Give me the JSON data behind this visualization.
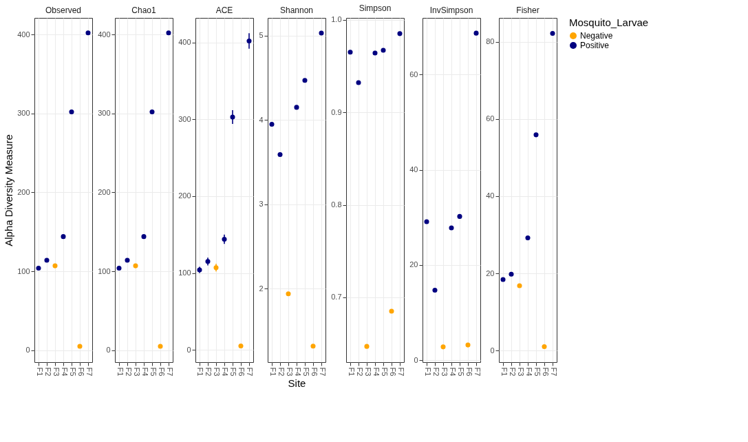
{
  "chart_data": [
    {
      "type": "scatter",
      "title": "Observed",
      "ylabel": "Alpha Diversity Measure",
      "categories": [
        "F1",
        "F2",
        "F3",
        "F4",
        "F5",
        "F6",
        "F7"
      ],
      "ylim": [
        -15,
        421
      ],
      "yticks": [
        0,
        100,
        200,
        300,
        400
      ],
      "grid": true,
      "marker": "circle",
      "series": [
        {
          "color": "#ffa500",
          "values": [
            null,
            null,
            107,
            null,
            null,
            5,
            null
          ]
        },
        {
          "color": "#000080",
          "values": [
            104,
            114,
            null,
            144,
            302,
            null,
            402
          ]
        }
      ]
    },
    {
      "type": "scatter",
      "title": "Chao1",
      "categories": [
        "F1",
        "F2",
        "F3",
        "F4",
        "F5",
        "F6",
        "F7"
      ],
      "ylim": [
        -15,
        421
      ],
      "yticks": [
        0,
        100,
        200,
        300,
        400
      ],
      "grid": true,
      "marker": "circle",
      "series": [
        {
          "color": "#ffa500",
          "values": [
            null,
            null,
            107,
            null,
            null,
            5,
            null
          ]
        },
        {
          "color": "#000080",
          "values": [
            104,
            114,
            null,
            144,
            302,
            null,
            402
          ]
        }
      ]
    },
    {
      "type": "scatter",
      "title": "ACE",
      "categories": [
        "F1",
        "F2",
        "F3",
        "F4",
        "F5",
        "F6",
        "F7"
      ],
      "ylim": [
        -16,
        432
      ],
      "yticks": [
        0,
        100,
        200,
        300,
        400
      ],
      "grid": true,
      "marker": "circle",
      "series": [
        {
          "color": "#ffa500",
          "values": [
            null,
            null,
            107,
            null,
            null,
            5,
            null
          ],
          "errors": [
            null,
            null,
            5,
            null,
            null,
            1,
            null
          ]
        },
        {
          "color": "#000080",
          "values": [
            104,
            115,
            null,
            144,
            303,
            null,
            402
          ],
          "errors": [
            4,
            5,
            null,
            6,
            9,
            null,
            10
          ]
        }
      ]
    },
    {
      "type": "scatter",
      "title": "Shannon",
      "xlabel": "Site",
      "categories": [
        "F1",
        "F2",
        "F3",
        "F4",
        "F5",
        "F6",
        "F7"
      ],
      "ylim": [
        1.13,
        5.21
      ],
      "yticks": [
        2,
        3,
        4,
        5
      ],
      "grid": true,
      "marker": "circle",
      "series": [
        {
          "color": "#ffa500",
          "values": [
            null,
            null,
            1.94,
            null,
            null,
            1.32,
            null
          ]
        },
        {
          "color": "#000080",
          "values": [
            3.95,
            3.59,
            null,
            4.15,
            4.47,
            null,
            5.03
          ]
        }
      ]
    },
    {
      "type": "scatter",
      "title": "Simpson",
      "categories": [
        "F1",
        "F2",
        "F3",
        "F4",
        "F5",
        "F6",
        "F7"
      ],
      "ylim": [
        0.63,
        1.002
      ],
      "yticks": [
        0.7,
        0.8,
        0.9,
        {
          "value": 1.0,
          "label": "1.0"
        }
      ],
      "grid": true,
      "marker": "circle",
      "series": [
        {
          "color": "#ffa500",
          "values": [
            null,
            null,
            0.647,
            null,
            null,
            0.685,
            null
          ]
        },
        {
          "color": "#000080",
          "values": [
            0.965,
            0.932,
            null,
            0.964,
            0.967,
            null,
            0.985
          ]
        }
      ]
    },
    {
      "type": "scatter",
      "title": "InvSimpson",
      "categories": [
        "F1",
        "F2",
        "F3",
        "F4",
        "F5",
        "F6",
        "F7"
      ],
      "ylim": [
        -0.4,
        71.9
      ],
      "yticks": [
        0,
        20,
        40,
        60
      ],
      "grid": true,
      "marker": "circle",
      "series": [
        {
          "color": "#ffa500",
          "values": [
            null,
            null,
            2.8,
            null,
            null,
            3.2,
            null
          ]
        },
        {
          "color": "#000080",
          "values": [
            29.1,
            14.7,
            null,
            27.8,
            30.2,
            null,
            68.7
          ]
        }
      ]
    },
    {
      "type": "scatter",
      "title": "Fisher",
      "legend_title": "Mosquito_Larvae",
      "categories": [
        "F1",
        "F2",
        "F3",
        "F4",
        "F5",
        "F6",
        "F7"
      ],
      "ylim": [
        -3,
        86.2
      ],
      "yticks": [
        0,
        20,
        40,
        60,
        80
      ],
      "grid": true,
      "marker": "circle",
      "legend": "right",
      "series": [
        {
          "name": "Negative",
          "color": "#ffa500",
          "values": [
            null,
            null,
            16.8,
            null,
            null,
            1.0,
            null
          ]
        },
        {
          "name": "Positive",
          "color": "#000080",
          "values": [
            18.4,
            19.8,
            null,
            29.2,
            55.9,
            null,
            82.2
          ]
        }
      ]
    }
  ]
}
